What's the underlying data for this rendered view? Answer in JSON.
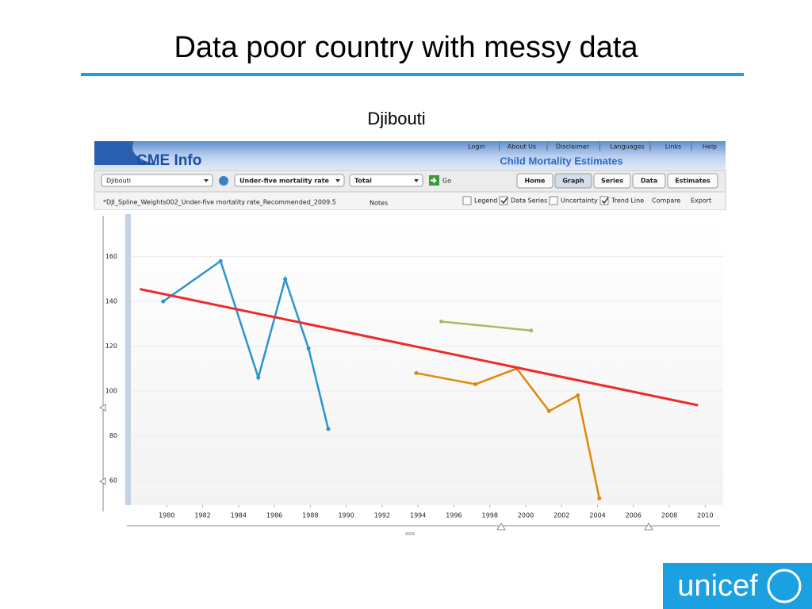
{
  "slide": {
    "title": "Data poor country with messy data",
    "subtitle": "Djibouti",
    "logo": "unicef"
  },
  "ui": {
    "brand": "CME Info",
    "banner": "Child Mortality Estimates",
    "nav": [
      "Login",
      "About Us",
      "Disclaimer",
      "Languages",
      "Links",
      "Help"
    ],
    "dropdowns": [
      "Djibouti",
      "Under-five mortality rate",
      "Total"
    ],
    "go": "Go",
    "buttons": [
      {
        "label": "Home",
        "active": false
      },
      {
        "label": "Graph",
        "active": true
      },
      {
        "label": "Series",
        "active": false
      },
      {
        "label": "Data",
        "active": false
      },
      {
        "label": "Estimates",
        "active": false
      }
    ],
    "file": "*DJI_Spline_Weights002_Under-five mortality rate_Recommended_2009.5",
    "notes": "Notes",
    "options": [
      {
        "label": "Legend",
        "checked": false
      },
      {
        "label": "Data Series",
        "checked": true
      },
      {
        "label": "Uncertainty",
        "checked": false
      },
      {
        "label": "Trend Line",
        "checked": true
      }
    ],
    "links": [
      "Compare",
      "Export"
    ]
  },
  "chart_data": {
    "type": "line",
    "xlim": [
      1978,
      2011
    ],
    "ylim": [
      49,
      179
    ],
    "xticks": [
      1980,
      1982,
      1984,
      1986,
      1988,
      1990,
      1992,
      1994,
      1996,
      1998,
      2000,
      2002,
      2004,
      2006,
      2008,
      2010
    ],
    "yticks": [
      60,
      80,
      100,
      120,
      140,
      160
    ],
    "grid": true,
    "series": [
      {
        "color": "#2b95d0",
        "x": [
          1979.8,
          1983.0,
          1985.1,
          1986.6,
          1987.9,
          1989.0
        ],
        "values": [
          140,
          158,
          106,
          150,
          119,
          83
        ]
      },
      {
        "color": "#a3be5c",
        "x": [
          1995.3,
          2000.3
        ],
        "values": [
          131,
          127
        ]
      },
      {
        "color": "#e0880e",
        "x": [
          1993.9,
          1997.2,
          1999.5,
          2001.3,
          2002.9,
          2004.1
        ],
        "values": [
          108,
          103,
          110,
          91,
          98,
          52
        ]
      },
      {
        "color": "#ee2a2a",
        "x": [
          1978.5,
          2009.6
        ],
        "values": [
          145.5,
          93.6
        ]
      }
    ]
  }
}
